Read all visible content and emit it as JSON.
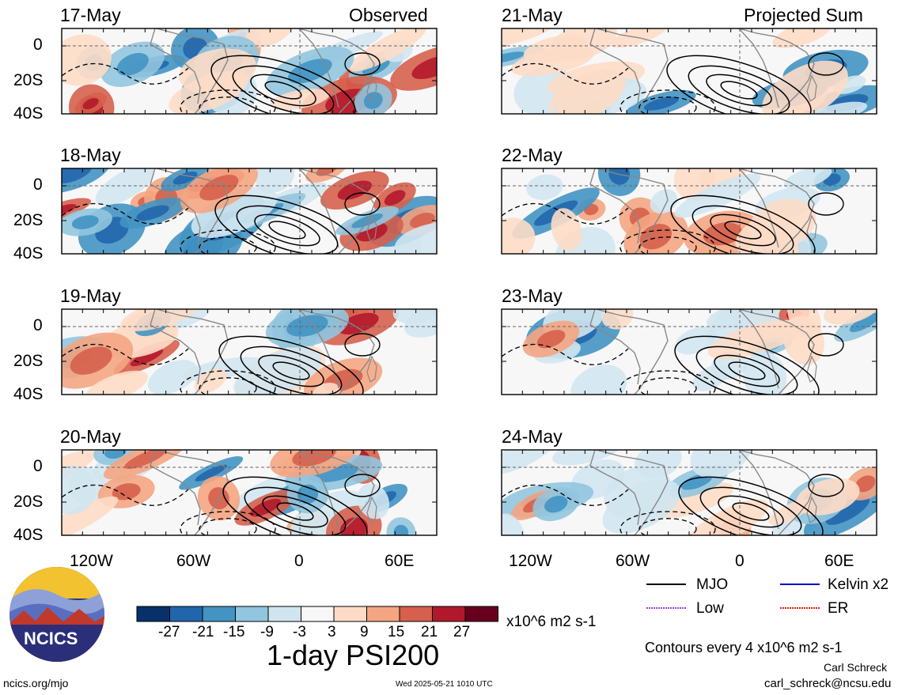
{
  "header": {
    "observed_label": "Observed",
    "projected_label": "Projected Sum"
  },
  "panels_left": [
    {
      "date": "17-May"
    },
    {
      "date": "18-May"
    },
    {
      "date": "19-May"
    },
    {
      "date": "20-May"
    }
  ],
  "panels_right": [
    {
      "date": "21-May"
    },
    {
      "date": "22-May"
    },
    {
      "date": "23-May"
    },
    {
      "date": "24-May"
    }
  ],
  "lat_ticks": [
    "0",
    "20S",
    "40S"
  ],
  "lon_ticks": [
    "120W",
    "60W",
    "0",
    "60E"
  ],
  "colorbar": {
    "colors": [
      "#08306b",
      "#2166ac",
      "#4393c3",
      "#92c5de",
      "#d1e5f0",
      "#f7f7f7",
      "#fddbc7",
      "#f4a582",
      "#d6604d",
      "#b2182b",
      "#67001f"
    ],
    "labels": [
      "-27",
      "-21",
      "-15",
      "-9",
      "-3",
      "3",
      "9",
      "15",
      "21",
      "27"
    ],
    "units": "x10^6 m2 s-1"
  },
  "title": "1-day PSI200",
  "legend": {
    "items": [
      {
        "label": "MJO",
        "color": "#000000"
      },
      {
        "label": "Kelvin x2",
        "color": "#0000cc"
      },
      {
        "label": "Low",
        "color": "#a040e0"
      },
      {
        "label": "ER",
        "color": "#dd2200"
      }
    ],
    "contours_note": "Contours every 4 x10^6 m2 s-1"
  },
  "credits": {
    "author": "Carl Schreck",
    "email": "carl_schreck@ncsu.edu",
    "url": "ncics.org/mjo",
    "timestamp": "Wed 2025-05-21 1010 UTC",
    "logo_text": "NCICS"
  }
}
